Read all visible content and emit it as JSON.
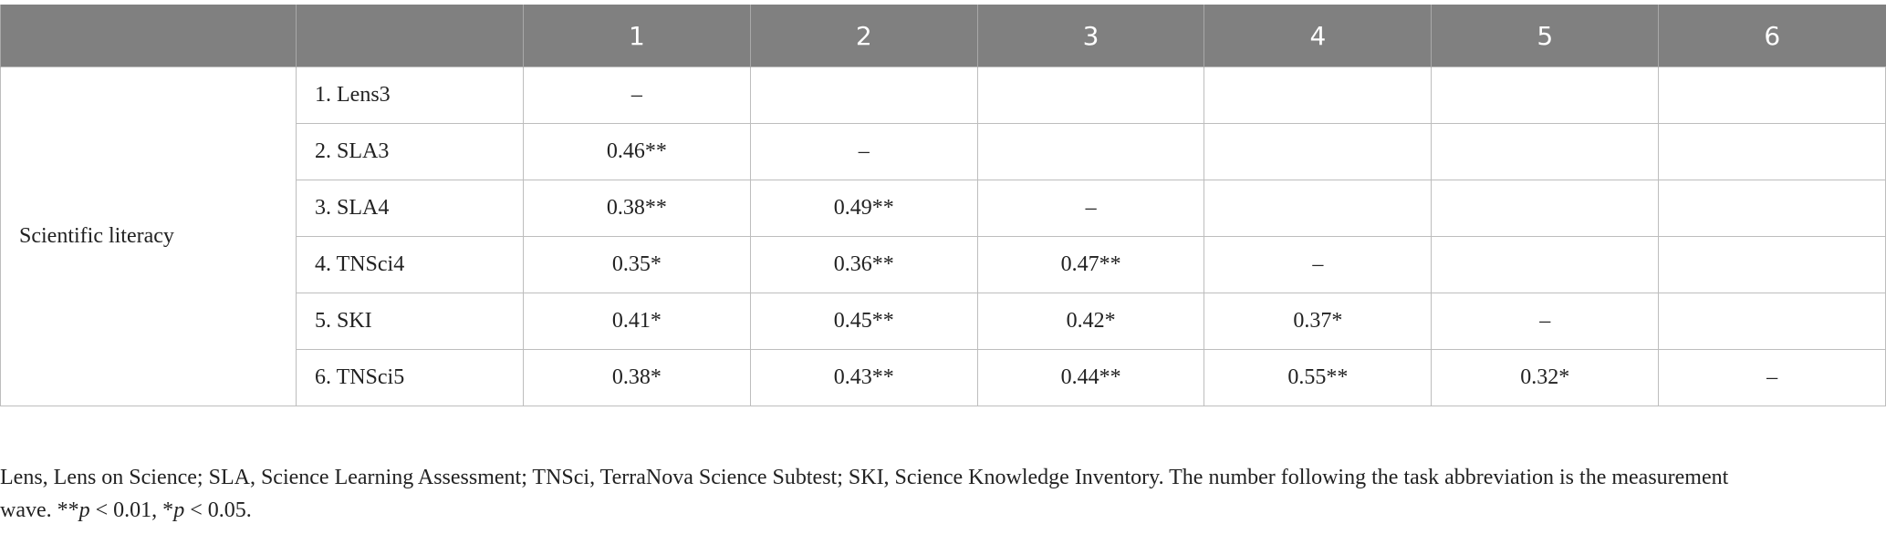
{
  "table": {
    "columns": [
      "1",
      "2",
      "3",
      "4",
      "5",
      "6"
    ],
    "group": "Scientific literacy",
    "rows": [
      {
        "label": "1. Lens3",
        "cells": [
          "–"
        ]
      },
      {
        "label": "2. SLA3",
        "cells": [
          "0.46**",
          "–"
        ]
      },
      {
        "label": "3. SLA4",
        "cells": [
          "0.38**",
          "0.49**",
          "–"
        ]
      },
      {
        "label": "4. TNSci4",
        "cells": [
          "0.35*",
          "0.36**",
          "0.47**",
          "–"
        ]
      },
      {
        "label": "5. SKI",
        "cells": [
          "0.41*",
          "0.45**",
          "0.42*",
          "0.37*",
          "–"
        ]
      },
      {
        "label": "6. TNSci5",
        "cells": [
          "0.38*",
          "0.43**",
          "0.44**",
          "0.55**",
          "0.32*",
          "–"
        ]
      }
    ]
  },
  "footnote": [
    {
      "text": "Lens, Lens on Science; SLA, Science Learning Assessment; TNSci, TerraNova Science Subtest; SKI, Science Knowledge Inventory. The number following the task abbreviation is the measurement wave. **"
    },
    {
      "text": "p",
      "italic": true
    },
    {
      "text": " < 0.01, *"
    },
    {
      "text": "p",
      "italic": true
    },
    {
      "text": " < 0.05."
    }
  ]
}
